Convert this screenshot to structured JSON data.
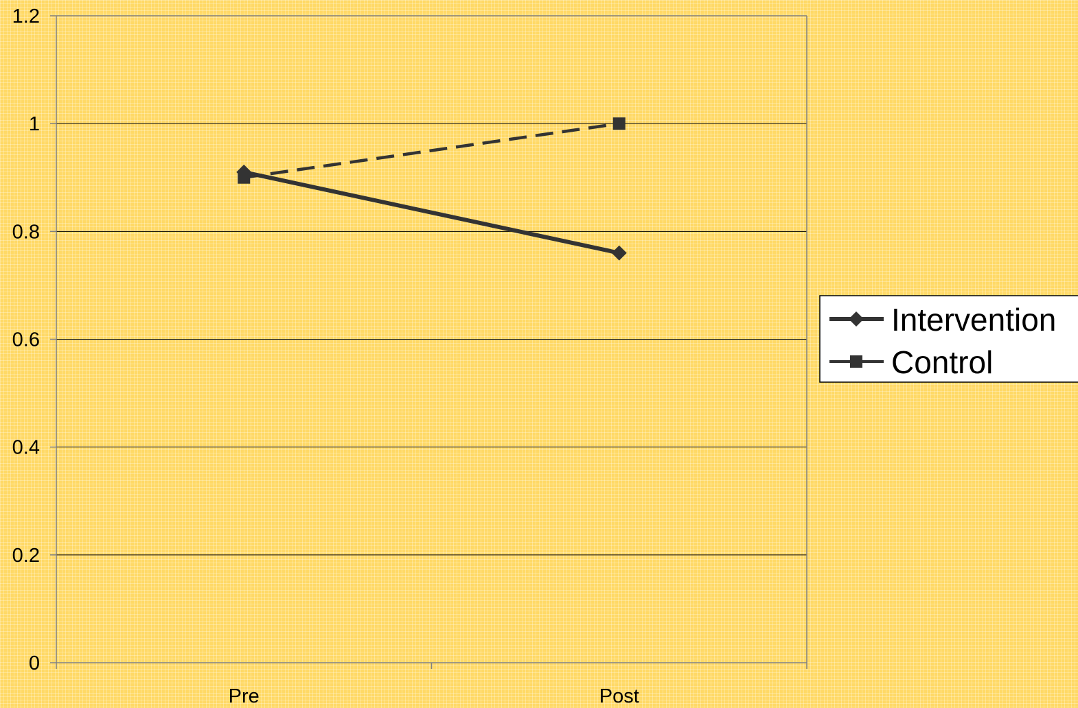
{
  "chart_data": {
    "type": "line",
    "categories": [
      "Pre",
      "Post"
    ],
    "series": [
      {
        "name": "Intervention",
        "values": [
          0.91,
          0.76
        ],
        "line_style": "solid",
        "marker": "diamond"
      },
      {
        "name": "Control",
        "values": [
          0.9,
          1.0
        ],
        "line_style": "dashed",
        "marker": "square"
      }
    ],
    "ylim": [
      0,
      1.2
    ],
    "yticks": [
      "0",
      "0.2",
      "0.4",
      "0.6",
      "0.8",
      "1",
      "1.2"
    ],
    "grid": true,
    "legend_position": "right",
    "colors": {
      "series": "#333333",
      "gridline": "#000000",
      "axis": "#808080"
    }
  }
}
